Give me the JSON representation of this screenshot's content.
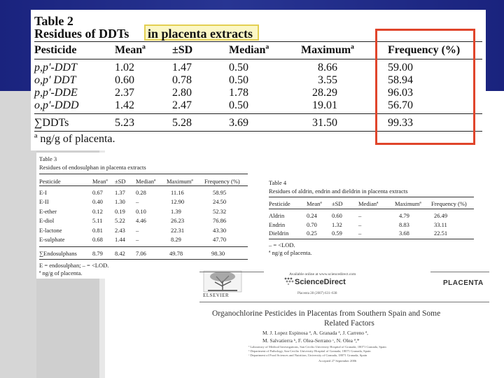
{
  "table2": {
    "caption_line1": "Table 2",
    "caption_line2_prefix": "Residues of DDTs ",
    "caption_line2_highlight": "in placenta extracts",
    "headers": [
      "Pesticide",
      "Meanª",
      "±SD",
      "Medianª",
      "Maximumª",
      "Frequency (%)"
    ],
    "rows": [
      [
        "p,p′-DDT",
        "1.02",
        "1.47",
        "0.50",
        "8.66",
        "59.00"
      ],
      [
        "o,p′ DDT",
        "0.60",
        "0.78",
        "0.50",
        "3.55",
        "58.94"
      ],
      [
        "p,p′-DDE",
        "2.37",
        "2.80",
        "1.78",
        "28.29",
        "96.03"
      ],
      [
        "o,p′-DDD",
        "1.42",
        "2.47",
        "0.50",
        "19.01",
        "56.70"
      ]
    ],
    "total_row": [
      "∑DDTs",
      "5.23",
      "5.28",
      "3.69",
      "31.50",
      "99.33"
    ],
    "footnote": "ª  ng/g of placenta."
  },
  "table3": {
    "caption_line1": "Table 3",
    "caption_line2": "Residues of endosulphan in placenta extracts",
    "headers": [
      "Pesticide",
      "Meanª",
      "±SD",
      "Medianª",
      "Maximumª",
      "Frequency (%)"
    ],
    "rows": [
      [
        "E-I",
        "0.67",
        "1.37",
        "0.28",
        "11.16",
        "58.95"
      ],
      [
        "E-II",
        "0.40",
        "1.30",
        "–",
        "12.90",
        "24.50"
      ],
      [
        "E-ether",
        "0.12",
        "0.19",
        "0.10",
        "1.39",
        "52.32"
      ],
      [
        "E-diol",
        "5.11",
        "5.22",
        "4.46",
        "26.23",
        "76.86"
      ],
      [
        "E-lactone",
        "0.81",
        "2.43",
        "–",
        "22.31",
        "43.30"
      ],
      [
        "E-sulphate",
        "0.68",
        "1.44",
        "–",
        "8.29",
        "47.70"
      ]
    ],
    "total_row": [
      "∑Endosulphans",
      "8.79",
      "8.42",
      "7.06",
      "49.78",
      "98.30"
    ],
    "footnote1": "E = endosulphan; – = <LOD.",
    "footnote2": "ª  ng/g of placenta."
  },
  "table4": {
    "caption_line1": "Table 4",
    "caption_line2": "Residues of aldrin, endrin and dieldrin in placenta extracts",
    "headers": [
      "Pesticide",
      "Meanª",
      "±SD",
      "Medianª",
      "Maximumª",
      "Frequency (%)"
    ],
    "rows": [
      [
        "Aldrin",
        "0.24",
        "0.60",
        "–",
        "4.79",
        "26.49"
      ],
      [
        "Endrin",
        "0.70",
        "1.32",
        "–",
        "8.83",
        "33.11"
      ],
      [
        "Dieldrin",
        "0.25",
        "0.59",
        "–",
        "3.68",
        "22.51"
      ]
    ],
    "footnote1": "– = <LOD.",
    "footnote2": "ª  ng/g of placenta."
  },
  "paper": {
    "publisher": "ELSEVIER",
    "available_online": "Available online at www.sciencedirect.com",
    "sciencedirect": "ScienceDirect",
    "citation": "Placenta 28 (2007) 631–638",
    "journal": "PLACENTA",
    "title_line1": "Organochlorine Pesticides in Placentas from Southern Spain and Some",
    "title_line2": "Related Factors",
    "authors_line1": "M. J. Lopez Espinosa ª, A. Granada ª, J. Carreno ª,",
    "authors_line2": "M. Salvatierra ᵇ, F. Olea-Serrano ᶜ, N. Olea ª,*",
    "affiliations": [
      "ª Laboratory of Medical Investigations, San Cecilio University Hospital of Granada, 18071 Granada, Spain",
      "ᵇ Department of Pathology, San Cecilio University Hospital of Granada, 18071 Granada, Spain",
      "ᶜ Department of Food Sciences and Nutrition, University of Granada, 18071 Granada, Spain"
    ],
    "accepted": "Accepted 27 September 2006"
  },
  "colors": {
    "banner": "#1a237e",
    "highlight_fill": "#fbf7c5",
    "highlight_border": "#e3cf52",
    "emphasis_box": "#e0452b",
    "sidebar": "#d6d6d6"
  }
}
